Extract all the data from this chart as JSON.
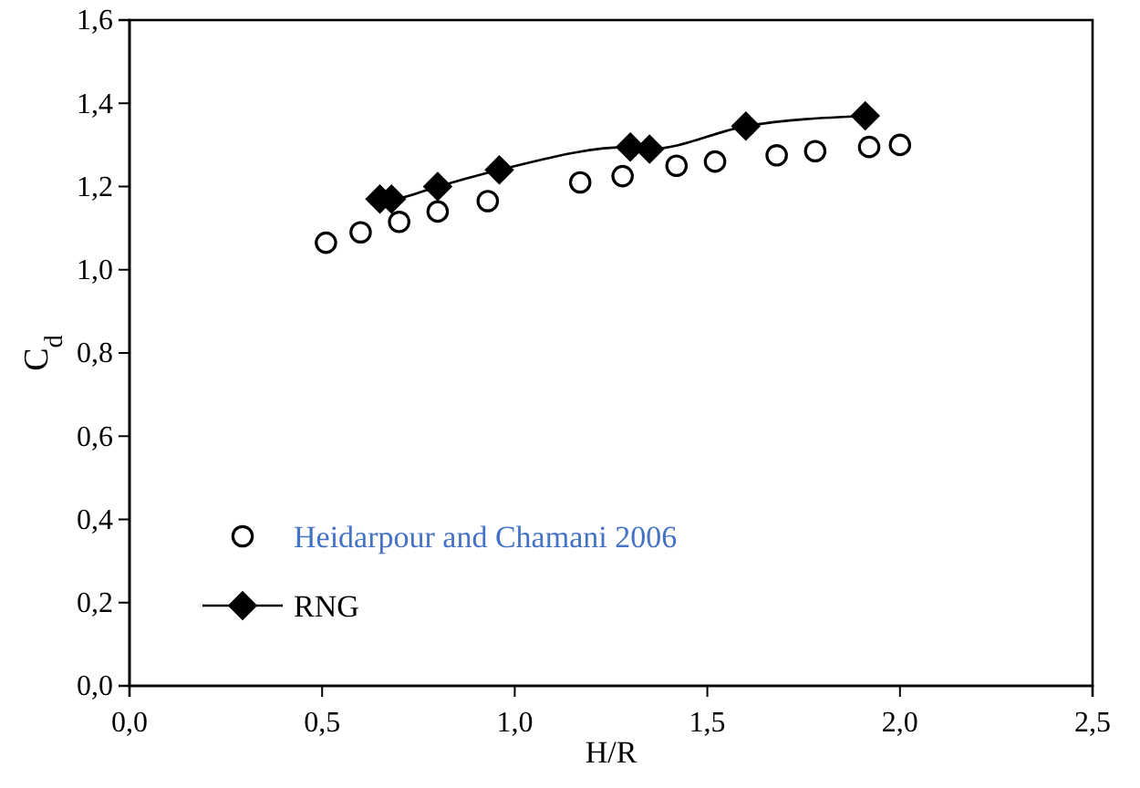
{
  "chart_data": {
    "type": "scatter",
    "xlabel": "H/R",
    "ylabel": "C$_{d}$",
    "xlim": [
      0,
      2.5
    ],
    "xticks": [
      {
        "value": 0,
        "label": "0,0"
      },
      {
        "value": 0.5,
        "label": "0,5"
      },
      {
        "value": 1,
        "label": "1,0"
      },
      {
        "value": 1.5,
        "label": "1,5"
      },
      {
        "value": 2,
        "label": "2,0"
      },
      {
        "value": 2.5,
        "label": "2,5"
      }
    ],
    "ylim": [
      0,
      1.6
    ],
    "yticks": [
      {
        "value": 0,
        "label": "0,0"
      },
      {
        "value": 0.2,
        "label": "0,2"
      },
      {
        "value": 0.4,
        "label": "0,4"
      },
      {
        "value": 0.6,
        "label": "0,6"
      },
      {
        "value": 0.8,
        "label": "0,8"
      },
      {
        "value": 1,
        "label": "1,0"
      },
      {
        "value": 1.2,
        "label": "1,2"
      },
      {
        "value": 1.4,
        "label": "1,4"
      },
      {
        "value": 1.6,
        "label": "1,6"
      }
    ],
    "legend": "bottom left",
    "grid": false,
    "series": [
      {
        "name": "Heidarpour and Chamani 2006",
        "marker": "circle",
        "color": "#000000",
        "x": [
          0.51,
          0.6,
          0.7,
          0.8,
          0.93,
          1.17,
          1.28,
          1.42,
          1.52,
          1.68,
          1.78,
          1.92,
          2.0
        ],
        "values": [
          1.065,
          1.09,
          1.115,
          1.14,
          1.165,
          1.21,
          1.225,
          1.25,
          1.26,
          1.275,
          1.285,
          1.295,
          1.3
        ]
      },
      {
        "name": "RNG",
        "type": "line",
        "marker": "diamond",
        "color": "#000000",
        "x": [
          0.65,
          0.68,
          0.8,
          0.96,
          1.3,
          1.35,
          1.6,
          1.91
        ],
        "values": [
          1.17,
          1.17,
          1.2,
          1.24,
          1.295,
          1.29,
          1.345,
          1.37
        ]
      }
    ]
  }
}
